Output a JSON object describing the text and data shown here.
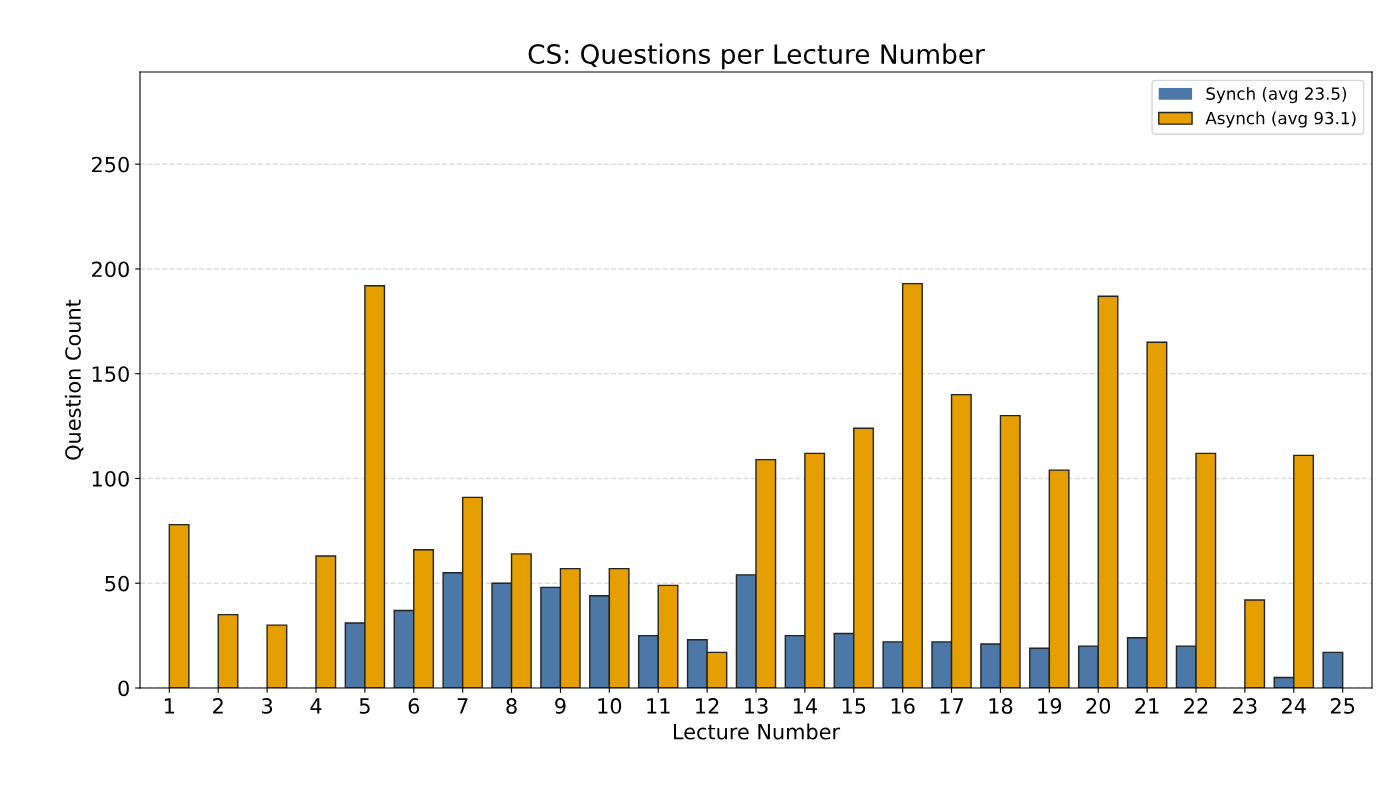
{
  "chart_data": {
    "type": "bar",
    "title": "CS: Questions per Lecture Number",
    "xlabel": "Lecture Number",
    "ylabel": "Question Count",
    "categories": [
      "1",
      "2",
      "3",
      "4",
      "5",
      "6",
      "7",
      "8",
      "9",
      "10",
      "11",
      "12",
      "13",
      "14",
      "15",
      "16",
      "17",
      "18",
      "19",
      "20",
      "21",
      "22",
      "23",
      "24",
      "25"
    ],
    "series": [
      {
        "name": "Synch (avg 23.5)",
        "color": "#4c78a8",
        "values": [
          0,
          0,
          0,
          0,
          31,
          37,
          55,
          50,
          48,
          44,
          25,
          23,
          54,
          25,
          26,
          22,
          22,
          21,
          19,
          20,
          24,
          20,
          0,
          5,
          17
        ]
      },
      {
        "name": "Asynch (avg 93.1)",
        "color": "#e69f00",
        "values": [
          78,
          35,
          30,
          63,
          192,
          66,
          91,
          64,
          57,
          57,
          49,
          17,
          109,
          112,
          124,
          193,
          140,
          130,
          104,
          187,
          165,
          112,
          42,
          111,
          0
        ]
      }
    ],
    "ylim": [
      0,
      294
    ],
    "yticks": [
      0,
      50,
      100,
      150,
      200,
      250
    ],
    "grid": "y",
    "legend": "top right"
  }
}
